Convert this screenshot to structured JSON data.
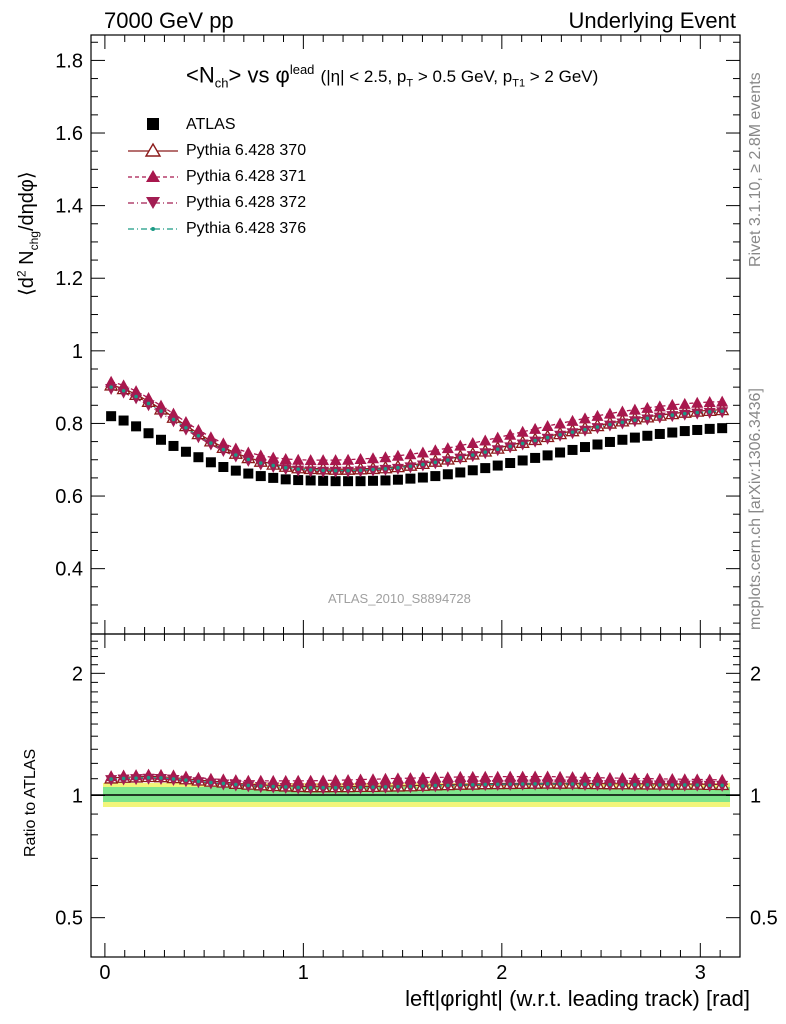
{
  "header": {
    "left": "7000 GeV pp",
    "right": "Underlying Event"
  },
  "side_labels": {
    "rivet": "Rivet 3.1.10, ≥ 2.8M events",
    "mcplots": "mcplots.cern.ch [arXiv:1306.3436]"
  },
  "plot_title": {
    "main": "<N_ch> vs φ^lead",
    "cuts": "(|η| < 2.5, p_T > 0.5 GeV, p_T1 > 2 GeV)"
  },
  "reference_label": "ATLAS_2010_S8894728",
  "axes": {
    "xlabel": "left|φright| (w.r.t. leading track) [rad]",
    "ylabel_main": "⟨d² N_chg/dηdφ⟩",
    "ylabel_ratio": "Ratio to ATLAS",
    "xlim": [
      -0.07,
      3.2
    ],
    "ylim_main": [
      0.22,
      1.87
    ],
    "ylim_ratio": [
      0.4,
      2.5
    ],
    "xticks": [
      "0",
      "1",
      "2",
      "3"
    ],
    "yticks_main": [
      "0.4",
      "0.6",
      "0.8",
      "1",
      "1.2",
      "1.4",
      "1.6",
      "1.8"
    ],
    "yticks_ratio": [
      "0.5",
      "1",
      "2"
    ]
  },
  "colors": {
    "atlas": "#000000",
    "p370": "#8b1a1a",
    "p371": "#a8174d",
    "p372": "#a21d52",
    "p376": "#1a9a85",
    "band_inner": "#7fe58c",
    "band_outer": "#f2f57a"
  },
  "chart_data": {
    "type": "scatter",
    "title": "<N_ch> vs φ^lead (|η| < 2.5, p_T > 0.5 GeV, p_T1 > 2 GeV)",
    "xlabel": "left|φright| (w.r.t. leading track) [rad]",
    "ylabel": "⟨d² N_chg/dηdφ⟩",
    "x": [
      0.0314,
      0.0942,
      0.1571,
      0.2199,
      0.2827,
      0.3456,
      0.4084,
      0.4712,
      0.5341,
      0.5969,
      0.6597,
      0.7226,
      0.7854,
      0.8482,
      0.9111,
      0.9739,
      1.0367,
      1.0996,
      1.1624,
      1.2252,
      1.2881,
      1.3509,
      1.4137,
      1.4765,
      1.5394,
      1.6022,
      1.665,
      1.7279,
      1.7907,
      1.8535,
      1.9164,
      1.9792,
      2.042,
      2.1049,
      2.1677,
      2.2305,
      2.2934,
      2.3562,
      2.419,
      2.4819,
      2.5447,
      2.6075,
      2.6704,
      2.7332,
      2.796,
      2.8588,
      2.9217,
      2.9845,
      3.0473,
      3.1102
    ],
    "series": [
      {
        "name": "ATLAS",
        "marker": "square",
        "values": [
          0.82,
          0.808,
          0.792,
          0.773,
          0.755,
          0.738,
          0.722,
          0.707,
          0.693,
          0.68,
          0.67,
          0.662,
          0.655,
          0.65,
          0.646,
          0.644,
          0.643,
          0.642,
          0.641,
          0.641,
          0.641,
          0.642,
          0.643,
          0.645,
          0.648,
          0.651,
          0.655,
          0.66,
          0.665,
          0.671,
          0.677,
          0.684,
          0.691,
          0.698,
          0.705,
          0.712,
          0.72,
          0.727,
          0.735,
          0.742,
          0.749,
          0.755,
          0.761,
          0.766,
          0.771,
          0.775,
          0.779,
          0.782,
          0.785,
          0.787
        ]
      },
      {
        "name": "Pythia 6.428 370",
        "marker": "open-triangle",
        "values": [
          0.906,
          0.896,
          0.88,
          0.861,
          0.84,
          0.817,
          0.794,
          0.772,
          0.752,
          0.734,
          0.718,
          0.706,
          0.696,
          0.688,
          0.682,
          0.678,
          0.676,
          0.675,
          0.674,
          0.674,
          0.675,
          0.676,
          0.678,
          0.681,
          0.685,
          0.69,
          0.696,
          0.702,
          0.709,
          0.716,
          0.724,
          0.732,
          0.74,
          0.748,
          0.756,
          0.764,
          0.772,
          0.78,
          0.787,
          0.794,
          0.801,
          0.807,
          0.813,
          0.818,
          0.823,
          0.827,
          0.831,
          0.834,
          0.836,
          0.838
        ]
      },
      {
        "name": "Pythia 6.428 371",
        "marker": "triangle-up",
        "values": [
          0.915,
          0.905,
          0.889,
          0.87,
          0.849,
          0.827,
          0.804,
          0.782,
          0.762,
          0.745,
          0.731,
          0.72,
          0.712,
          0.706,
          0.702,
          0.7,
          0.699,
          0.699,
          0.699,
          0.7,
          0.702,
          0.704,
          0.707,
          0.711,
          0.715,
          0.72,
          0.726,
          0.732,
          0.739,
          0.746,
          0.753,
          0.761,
          0.769,
          0.777,
          0.785,
          0.793,
          0.8,
          0.807,
          0.814,
          0.821,
          0.827,
          0.833,
          0.838,
          0.843,
          0.847,
          0.851,
          0.854,
          0.857,
          0.859,
          0.86
        ]
      },
      {
        "name": "Pythia 6.428 372",
        "marker": "triangle-down",
        "values": [
          0.895,
          0.885,
          0.869,
          0.85,
          0.829,
          0.806,
          0.783,
          0.762,
          0.742,
          0.724,
          0.709,
          0.697,
          0.687,
          0.68,
          0.674,
          0.67,
          0.668,
          0.667,
          0.667,
          0.667,
          0.668,
          0.67,
          0.672,
          0.675,
          0.679,
          0.684,
          0.69,
          0.696,
          0.703,
          0.71,
          0.718,
          0.726,
          0.734,
          0.742,
          0.75,
          0.758,
          0.766,
          0.773,
          0.78,
          0.787,
          0.794,
          0.8,
          0.806,
          0.811,
          0.816,
          0.82,
          0.824,
          0.827,
          0.829,
          0.831
        ]
      },
      {
        "name": "Pythia 6.428 376",
        "marker": "dot",
        "values": [
          0.9,
          0.89,
          0.874,
          0.855,
          0.834,
          0.811,
          0.788,
          0.766,
          0.746,
          0.728,
          0.713,
          0.701,
          0.691,
          0.684,
          0.678,
          0.674,
          0.672,
          0.671,
          0.67,
          0.67,
          0.671,
          0.673,
          0.675,
          0.678,
          0.682,
          0.687,
          0.693,
          0.699,
          0.706,
          0.713,
          0.721,
          0.729,
          0.737,
          0.745,
          0.753,
          0.761,
          0.769,
          0.776,
          0.783,
          0.79,
          0.797,
          0.803,
          0.809,
          0.814,
          0.819,
          0.823,
          0.827,
          0.83,
          0.832,
          0.834
        ]
      }
    ],
    "ratio_band": {
      "inner": [
        0.965,
        1.035
      ],
      "outer": [
        0.945,
        1.055
      ]
    }
  },
  "legend": [
    {
      "name": "ATLAS",
      "key": "atlas"
    },
    {
      "name": "Pythia 6.428 370",
      "key": "p370"
    },
    {
      "name": "Pythia 6.428 371",
      "key": "p371"
    },
    {
      "name": "Pythia 6.428 372",
      "key": "p372"
    },
    {
      "name": "Pythia 6.428 376",
      "key": "p376"
    }
  ]
}
